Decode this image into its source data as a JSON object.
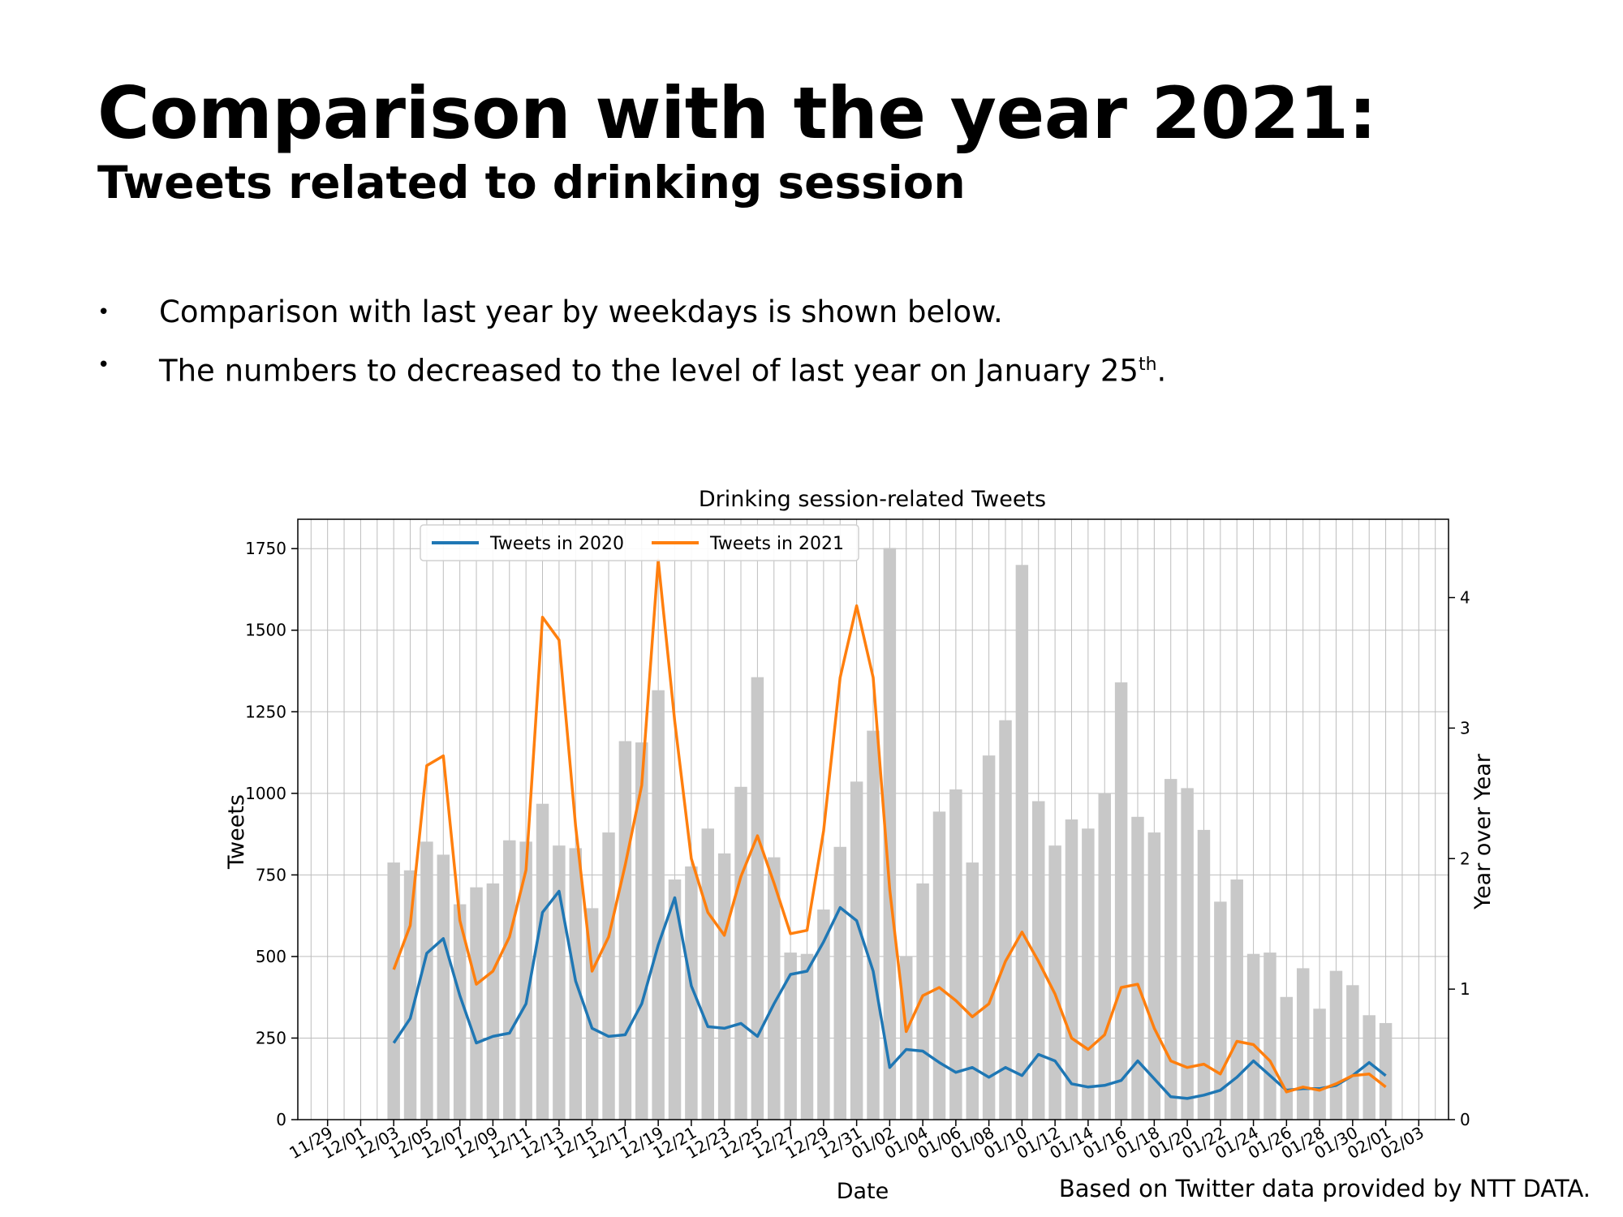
{
  "slide": {
    "title": "Comparison with the year 2021:",
    "subtitle": "Tweets related to drinking session",
    "bullets": [
      {
        "text": "Comparison with last year by weekdays is shown below."
      },
      {
        "text": "The numbers to decreased to the level of last year on January 25",
        "sup": "th",
        "suffix": "."
      }
    ],
    "bullet_icon": "bullet-dot",
    "source_note": "Based on Twitter data provided by NTT DATA."
  },
  "chart_data": {
    "type": "line",
    "title": "Drinking session-related Tweets",
    "xlabel": "Date",
    "ylabel": "Tweets",
    "ylabel_right": "Year over Year",
    "ylim": [
      0,
      1840
    ],
    "ylim_right": [
      0,
      4.6
    ],
    "yticks": [
      0,
      250,
      500,
      750,
      1000,
      1250,
      1500,
      1750
    ],
    "yticks_right": [
      0,
      1,
      2,
      3,
      4
    ],
    "grid": true,
    "legend_position": "top-left",
    "x_ticks": [
      "11/29",
      "12/01",
      "12/03",
      "12/05",
      "12/07",
      "12/09",
      "12/11",
      "12/13",
      "12/15",
      "12/17",
      "12/19",
      "12/21",
      "12/23",
      "12/25",
      "12/27",
      "12/29",
      "12/31",
      "01/02",
      "01/04",
      "01/06",
      "01/08",
      "01/10",
      "01/12",
      "01/14",
      "01/16",
      "01/18",
      "01/20",
      "01/22",
      "01/24",
      "01/26",
      "01/28",
      "01/30",
      "02/01",
      "02/03"
    ],
    "x": [
      "12/03",
      "12/04",
      "12/05",
      "12/06",
      "12/07",
      "12/08",
      "12/09",
      "12/10",
      "12/11",
      "12/12",
      "12/13",
      "12/14",
      "12/15",
      "12/16",
      "12/17",
      "12/18",
      "12/19",
      "12/20",
      "12/21",
      "12/22",
      "12/23",
      "12/24",
      "12/25",
      "12/26",
      "12/27",
      "12/28",
      "12/29",
      "12/30",
      "12/31",
      "01/01",
      "01/02",
      "01/03",
      "01/04",
      "01/05",
      "01/06",
      "01/07",
      "01/08",
      "01/09",
      "01/10",
      "01/11",
      "01/12",
      "01/13",
      "01/14",
      "01/15",
      "01/16",
      "01/17",
      "01/18",
      "01/19",
      "01/20",
      "01/21",
      "01/22",
      "01/23",
      "01/24",
      "01/25",
      "01/26",
      "01/27",
      "01/28",
      "01/29",
      "01/30",
      "01/31",
      "02/01"
    ],
    "series": [
      {
        "name": "Tweets in 2020",
        "color": "#1f77b4",
        "axis": "left",
        "values": [
          235,
          310,
          510,
          555,
          380,
          235,
          255,
          265,
          355,
          635,
          700,
          425,
          280,
          255,
          260,
          355,
          535,
          680,
          410,
          285,
          280,
          295,
          255,
          355,
          445,
          455,
          545,
          650,
          610,
          455,
          160,
          215,
          210,
          175,
          145,
          160,
          130,
          160,
          135,
          200,
          180,
          110,
          100,
          105,
          120,
          180,
          125,
          70,
          65,
          75,
          90,
          130,
          180,
          135,
          90,
          95,
          95,
          105,
          135,
          175,
          135
        ]
      },
      {
        "name": "Tweets in 2021",
        "color": "#ff7f0e",
        "axis": "left",
        "values": [
          460,
          595,
          1085,
          1115,
          610,
          415,
          455,
          560,
          765,
          1540,
          1470,
          900,
          455,
          560,
          780,
          1025,
          1715,
          1220,
          800,
          635,
          565,
          745,
          870,
          725,
          570,
          580,
          885,
          1355,
          1575,
          1355,
          705,
          270,
          380,
          405,
          365,
          315,
          355,
          485,
          575,
          485,
          385,
          250,
          215,
          260,
          405,
          415,
          280,
          180,
          160,
          170,
          140,
          240,
          230,
          180,
          85,
          100,
          90,
          110,
          135,
          140,
          100
        ]
      },
      {
        "name": "Year over Year",
        "color": "#c8c8c8",
        "axis": "right",
        "type": "bar",
        "values": [
          1.97,
          1.91,
          2.13,
          2.03,
          1.65,
          1.78,
          1.81,
          2.14,
          2.13,
          2.42,
          2.1,
          2.08,
          1.62,
          2.2,
          2.9,
          2.89,
          3.29,
          1.84,
          1.94,
          2.23,
          2.04,
          2.55,
          3.39,
          2.01,
          1.28,
          1.27,
          1.61,
          2.09,
          2.59,
          2.98,
          4.38,
          1.25,
          1.81,
          2.36,
          2.53,
          1.97,
          2.79,
          3.06,
          4.25,
          2.44,
          2.1,
          2.3,
          2.23,
          2.5,
          3.35,
          2.32,
          2.2,
          2.61,
          2.54,
          2.22,
          1.67,
          1.84,
          1.27,
          1.28,
          0.94,
          1.16,
          0.85,
          1.14,
          1.03,
          0.8,
          0.74
        ]
      }
    ]
  }
}
